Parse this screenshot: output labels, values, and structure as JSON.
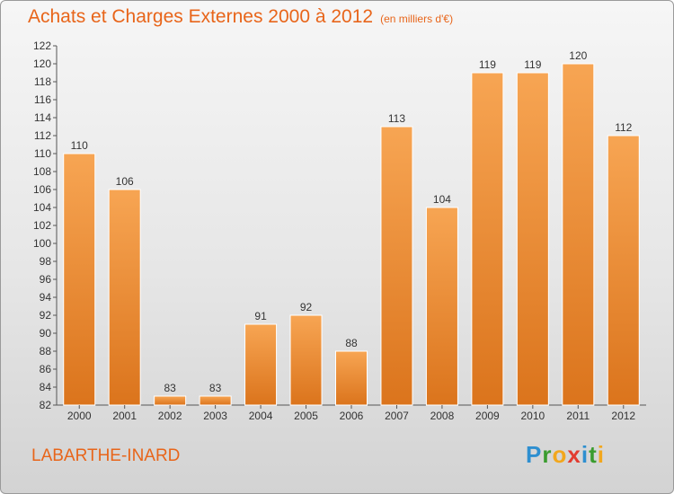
{
  "header": {
    "title": "Achats et Charges Externes 2000 à 2012",
    "unit": "(en milliers d'€)"
  },
  "footer": {
    "place": "LABARTHE-INARD",
    "brand": [
      "P",
      "r",
      "o",
      "x",
      "i",
      "t",
      "i"
    ]
  },
  "colors": {
    "title": "#e8651a",
    "bar_top": "#f7a553",
    "bar_bottom": "#db741c",
    "axis": "#555555"
  },
  "chart_data": {
    "type": "bar",
    "categories": [
      "2000",
      "2001",
      "2002",
      "2003",
      "2004",
      "2005",
      "2006",
      "2007",
      "2008",
      "2009",
      "2010",
      "2011",
      "2012"
    ],
    "values": [
      110,
      106,
      83,
      83,
      91,
      92,
      88,
      113,
      104,
      119,
      119,
      120,
      112
    ],
    "title": "Achats et Charges Externes 2000 à 2012",
    "xlabel": "",
    "ylabel": "",
    "ylim": [
      82,
      122
    ],
    "yticks": [
      82,
      84,
      86,
      88,
      90,
      92,
      94,
      96,
      98,
      100,
      102,
      104,
      106,
      108,
      110,
      112,
      114,
      116,
      118,
      120,
      122
    ],
    "grid": false,
    "legend": "none"
  }
}
